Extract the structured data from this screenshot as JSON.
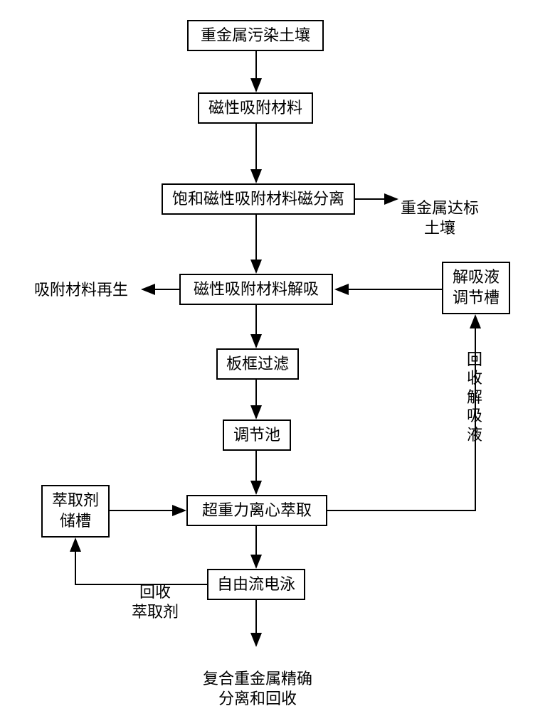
{
  "type": "flowchart",
  "background_color": "#ffffff",
  "border_color": "#000000",
  "border_width": 2,
  "font_size": 22,
  "arrow_stroke": "#000000",
  "arrow_width": 2,
  "nodes": {
    "n1": {
      "text": "重金属污染土壤"
    },
    "n2": {
      "text": "磁性吸附材料"
    },
    "n3": {
      "text": "饱和磁性吸附材料磁分离"
    },
    "n4": {
      "text": "磁性吸附材料解吸"
    },
    "n5": {
      "text": "板框过滤"
    },
    "n6": {
      "text": "调节池"
    },
    "n7": {
      "text": "超重力离心萃取"
    },
    "n8": {
      "text": "自由流电泳"
    },
    "n9": {
      "text": "解吸液\n调节槽"
    },
    "n10": {
      "text": "萃取剂\n储槽"
    }
  },
  "labels": {
    "l1": {
      "text": "重金属达标\n土壤"
    },
    "l2": {
      "text": "吸附材料再生"
    },
    "l3": {
      "text": "复合重金属精确\n分离和回收"
    },
    "l4": {
      "text": "回收\n萃取剂"
    },
    "l5v": {
      "text": "回收解吸液"
    }
  }
}
